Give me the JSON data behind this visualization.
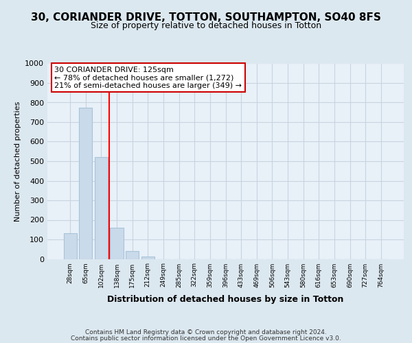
{
  "title1": "30, CORIANDER DRIVE, TOTTON, SOUTHAMPTON, SO40 8FS",
  "title2": "Size of property relative to detached houses in Totton",
  "xlabel": "Distribution of detached houses by size in Totton",
  "ylabel": "Number of detached properties",
  "footer1": "Contains HM Land Registry data © Crown copyright and database right 2024.",
  "footer2": "Contains public sector information licensed under the Open Government Licence v3.0.",
  "bin_labels": [
    "28sqm",
    "65sqm",
    "102sqm",
    "138sqm",
    "175sqm",
    "212sqm",
    "249sqm",
    "285sqm",
    "322sqm",
    "359sqm",
    "396sqm",
    "433sqm",
    "469sqm",
    "506sqm",
    "543sqm",
    "580sqm",
    "616sqm",
    "653sqm",
    "690sqm",
    "727sqm",
    "764sqm"
  ],
  "bar_heights": [
    130,
    775,
    520,
    158,
    40,
    12,
    0,
    0,
    0,
    0,
    0,
    0,
    0,
    0,
    0,
    0,
    0,
    0,
    0,
    0,
    0
  ],
  "bar_color": "#c9daea",
  "bar_edge_color": "#a8c4d8",
  "highlight_line_index": 3,
  "highlight_line_color": "red",
  "annotation_text_line1": "30 CORIANDER DRIVE: 125sqm",
  "annotation_text_line2": "← 78% of detached houses are smaller (1,272)",
  "annotation_text_line3": "21% of semi-detached houses are larger (349) →",
  "annotation_box_color": "white",
  "annotation_box_edge_color": "#cc0000",
  "ylim": [
    0,
    1000
  ],
  "yticks": [
    0,
    100,
    200,
    300,
    400,
    500,
    600,
    700,
    800,
    900,
    1000
  ],
  "grid_color": "#c8d4e0",
  "bg_color": "#dce8f0",
  "plot_bg_color": "#e8f0f8",
  "title1_fontsize": 11,
  "title2_fontsize": 9,
  "xlabel_fontsize": 9,
  "ylabel_fontsize": 8
}
